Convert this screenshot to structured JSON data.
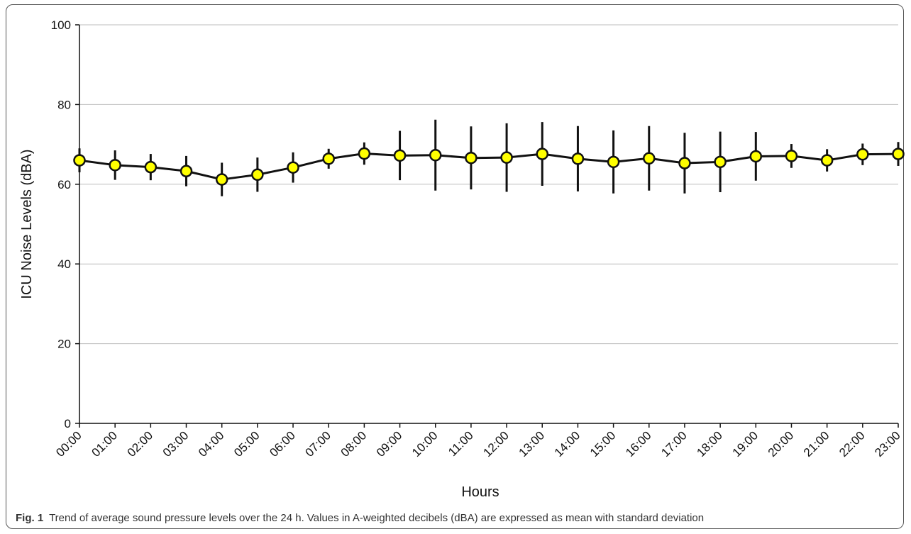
{
  "chart_data": {
    "type": "line",
    "xlabel": "Hours",
    "ylabel": "ICU Noise Levels (dBA)",
    "ylim": [
      0,
      100
    ],
    "yticks": [
      0,
      20,
      40,
      60,
      80,
      100
    ],
    "grid": true,
    "categories": [
      "00:00",
      "01:00",
      "02:00",
      "03:00",
      "04:00",
      "05:00",
      "06:00",
      "07:00",
      "08:00",
      "09:00",
      "10:00",
      "11:00",
      "12:00",
      "13:00",
      "14:00",
      "15:00",
      "16:00",
      "17:00",
      "18:00",
      "19:00",
      "20:00",
      "21:00",
      "22:00",
      "23:00"
    ],
    "series": [
      {
        "values": [
          66.0,
          64.8,
          64.3,
          63.3,
          61.2,
          62.4,
          64.2,
          66.4,
          67.7,
          67.2,
          67.3,
          66.6,
          66.7,
          67.6,
          66.4,
          65.6,
          66.5,
          65.3,
          65.6,
          67.0,
          67.1,
          66.0,
          67.5,
          67.6
        ],
        "sd": [
          3.0,
          3.7,
          3.3,
          3.8,
          4.2,
          4.3,
          3.8,
          2.5,
          2.8,
          6.2,
          8.9,
          7.9,
          8.6,
          8.0,
          8.2,
          7.9,
          8.1,
          7.6,
          7.6,
          6.1,
          3.0,
          2.8,
          2.7,
          3.0
        ],
        "color": "#111111",
        "marker_color": "#ffff00"
      }
    ]
  },
  "caption": {
    "fig_label": "Fig. 1",
    "text": "Trend of average sound pressure levels over the 24 h. Values in A-weighted decibels (dBA) are expressed as mean with standard deviation"
  }
}
